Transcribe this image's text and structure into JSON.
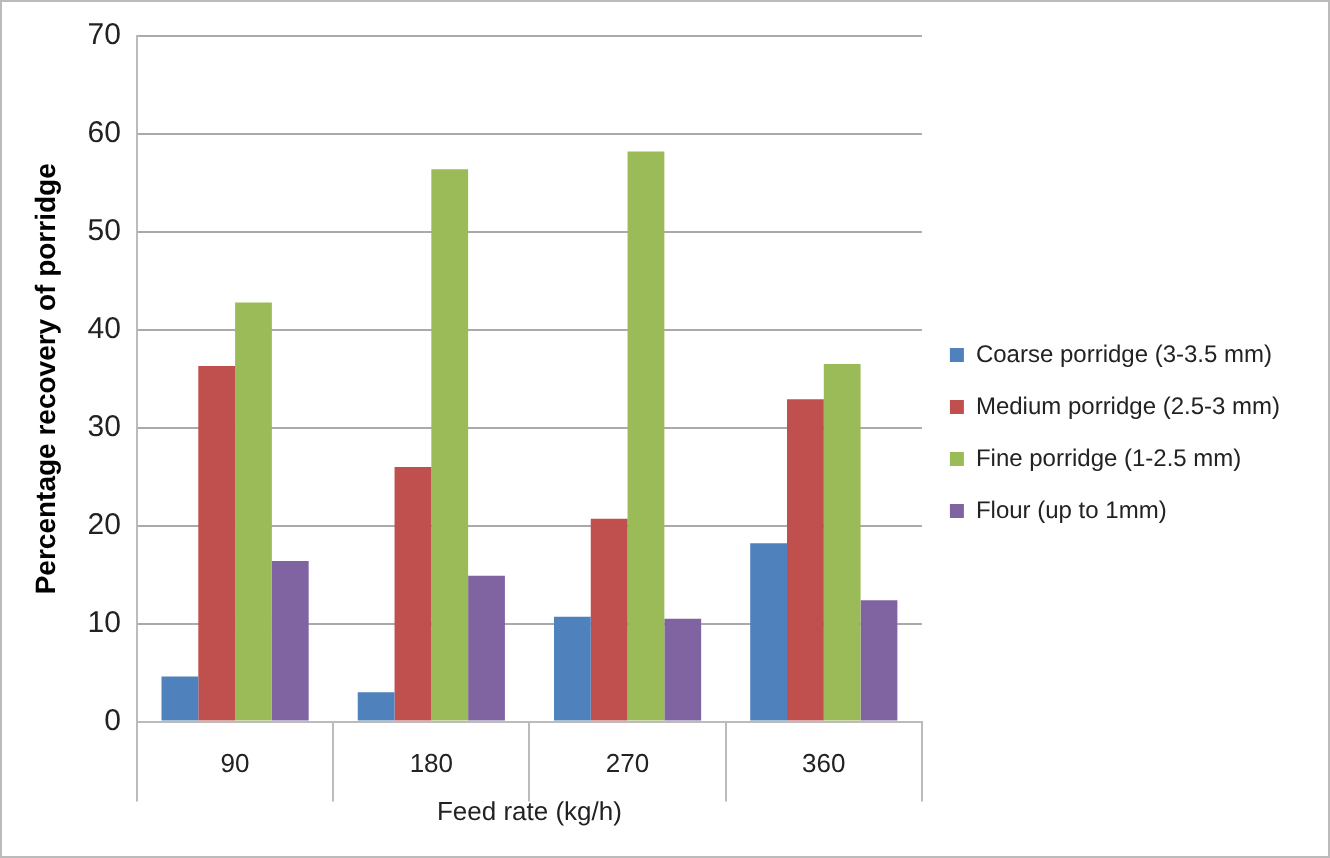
{
  "chart_data": {
    "type": "bar",
    "xlabel": "Feed rate (kg/h)",
    "ylabel": "Percentage recovery of porridge",
    "categories": [
      "90",
      "180",
      "270",
      "360"
    ],
    "series": [
      {
        "name": "Coarse porridge (3-3.5 mm)",
        "color": "#4f81bd",
        "values": [
          4.6,
          3.0,
          10.7,
          18.2
        ]
      },
      {
        "name": "Medium porridge (2.5-3 mm)",
        "color": "#c0504d",
        "values": [
          36.3,
          26.0,
          20.7,
          32.9
        ]
      },
      {
        "name": "Fine porridge (1-2.5 mm)",
        "color": "#9bbb59",
        "values": [
          42.8,
          56.4,
          58.2,
          36.5
        ]
      },
      {
        "name": "Flour (up to 1mm)",
        "color": "#8064a2",
        "values": [
          16.4,
          14.9,
          10.5,
          12.4
        ]
      }
    ],
    "ylim": [
      0,
      70
    ],
    "yticks": [
      0,
      10,
      20,
      30,
      40,
      50,
      60,
      70
    ],
    "grid": "y",
    "legend": "right"
  }
}
